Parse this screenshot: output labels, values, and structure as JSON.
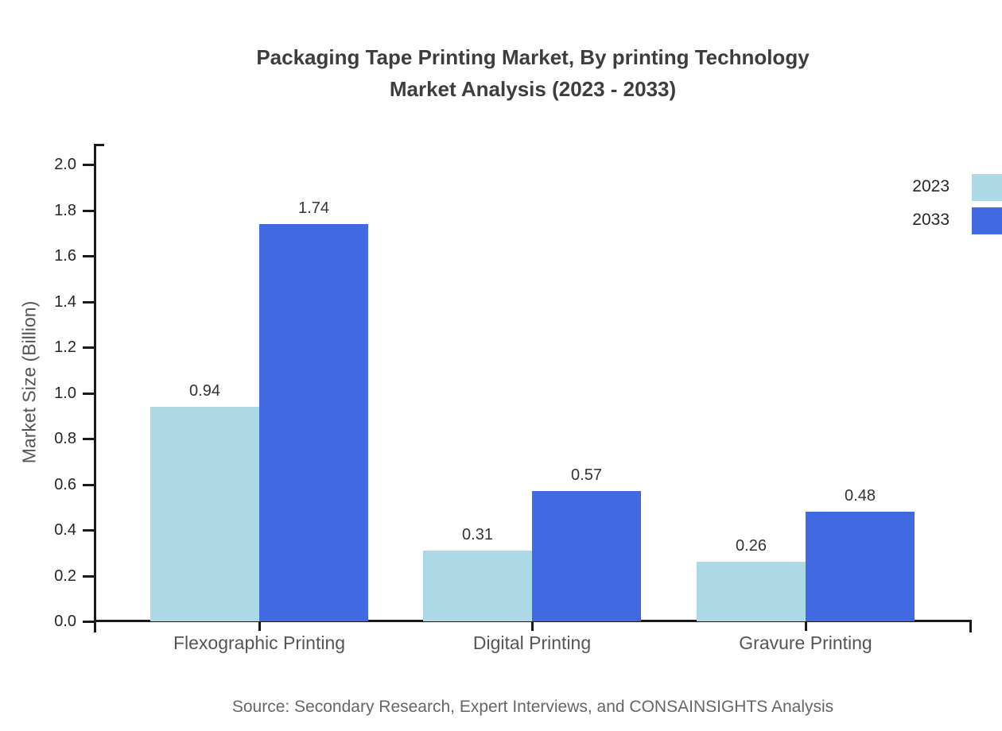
{
  "title": {
    "line1": "Packaging Tape Printing Market, By printing Technology",
    "line2": "Market Analysis (2023 - 2033)"
  },
  "chart_data": {
    "type": "bar",
    "categories": [
      "Flexographic Printing",
      "Digital Printing",
      "Gravure Printing"
    ],
    "series": [
      {
        "name": "2023",
        "color": "#ADD8E6",
        "values": [
          0.94,
          0.31,
          0.26
        ]
      },
      {
        "name": "2033",
        "color": "#4169E1",
        "values": [
          1.74,
          0.57,
          0.48
        ]
      }
    ],
    "value_labels": [
      [
        "0.94",
        "0.31",
        "0.26"
      ],
      [
        "1.74",
        "0.57",
        "0.48"
      ]
    ],
    "xlabel": "",
    "ylabel": "Market Size (Billion)",
    "ylim": [
      0.0,
      2.0
    ],
    "ytick_step": 0.2,
    "yticks": [
      "0.0",
      "0.2",
      "0.4",
      "0.6",
      "0.8",
      "1.0",
      "1.2",
      "1.4",
      "1.6",
      "1.8",
      "2.0"
    ],
    "grid": false,
    "legend_position": "upper-right",
    "legend_entries": [
      "2023",
      "2033"
    ]
  },
  "source": "Source: Secondary Research, Expert Interviews, and CONSAINSIGHTS Analysis",
  "colors": {
    "series_2023": "#ADD8E6",
    "series_2033": "#4169E1",
    "axis": "#1a1a1a",
    "title_text": "#3d3d3d",
    "axis_label_text": "#555555",
    "tick_label_text": "#262626",
    "value_label_text": "#333333",
    "source_text": "#666666",
    "background": "#ffffff"
  }
}
